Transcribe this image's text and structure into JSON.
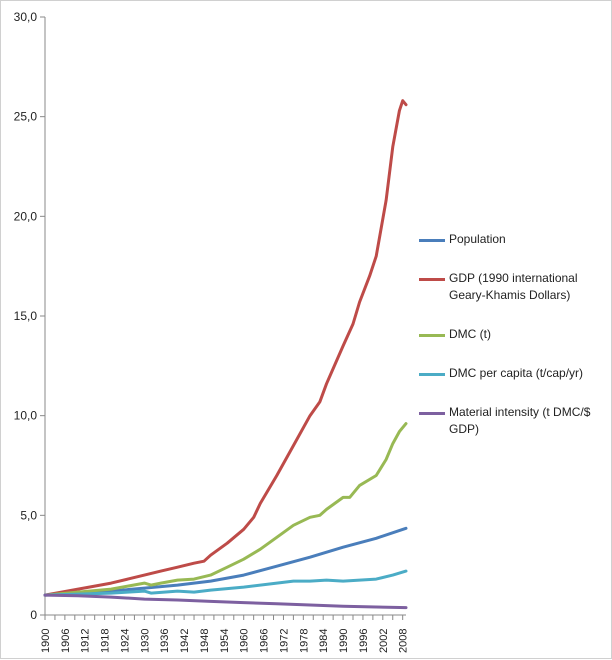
{
  "chart_data": {
    "type": "line",
    "title": "",
    "xlabel": "",
    "ylabel": "",
    "ylim": [
      0,
      30
    ],
    "xlim": [
      1900,
      2009
    ],
    "y_ticks": [
      "0",
      "5,0",
      "10,0",
      "15,0",
      "20,0",
      "25,0",
      "30,0"
    ],
    "y_tick_values": [
      0,
      5,
      10,
      15,
      20,
      25,
      30
    ],
    "x_ticks": [
      1900,
      1906,
      1912,
      1918,
      1924,
      1930,
      1936,
      1942,
      1948,
      1954,
      1960,
      1966,
      1972,
      1978,
      1984,
      1990,
      1996,
      2002,
      2008
    ],
    "grid": false,
    "legend_position": "right",
    "series": [
      {
        "name": "Population",
        "color": "#4a7ebb",
        "x": [
          1900,
          1910,
          1920,
          1930,
          1940,
          1950,
          1960,
          1970,
          1980,
          1990,
          2000,
          2009
        ],
        "y": [
          1.0,
          1.1,
          1.2,
          1.35,
          1.5,
          1.7,
          2.0,
          2.45,
          2.9,
          3.4,
          3.85,
          4.35
        ]
      },
      {
        "name": "GDP (1990 international Geary-Khamis Dollars)",
        "color": "#be4b48",
        "x": [
          1900,
          1905,
          1910,
          1915,
          1920,
          1925,
          1930,
          1935,
          1940,
          1945,
          1948,
          1950,
          1955,
          1960,
          1963,
          1965,
          1970,
          1975,
          1980,
          1983,
          1985,
          1990,
          1993,
          1995,
          1998,
          2000,
          2003,
          2005,
          2007,
          2008,
          2009
        ],
        "y": [
          1.0,
          1.15,
          1.3,
          1.45,
          1.6,
          1.8,
          2.0,
          2.2,
          2.4,
          2.6,
          2.7,
          3.0,
          3.6,
          4.3,
          4.9,
          5.6,
          7.0,
          8.5,
          10.0,
          10.7,
          11.6,
          13.5,
          14.6,
          15.7,
          17.0,
          18.0,
          20.8,
          23.5,
          25.3,
          25.8,
          25.6
        ]
      },
      {
        "name": "DMC (t)",
        "color": "#98b954",
        "x": [
          1900,
          1910,
          1920,
          1925,
          1930,
          1932,
          1935,
          1940,
          1945,
          1950,
          1955,
          1960,
          1965,
          1970,
          1975,
          1980,
          1983,
          1985,
          1990,
          1992,
          1995,
          2000,
          2003,
          2005,
          2007,
          2009
        ],
        "y": [
          1.0,
          1.15,
          1.3,
          1.45,
          1.6,
          1.5,
          1.6,
          1.75,
          1.8,
          2.0,
          2.4,
          2.8,
          3.3,
          3.9,
          4.5,
          4.9,
          5.0,
          5.3,
          5.9,
          5.9,
          6.5,
          7.0,
          7.8,
          8.6,
          9.2,
          9.6
        ]
      },
      {
        "name": "DMC per capita (t/cap/yr)",
        "color": "#4bacc6",
        "x": [
          1900,
          1910,
          1920,
          1925,
          1930,
          1932,
          1940,
          1945,
          1950,
          1960,
          1970,
          1975,
          1980,
          1985,
          1990,
          1995,
          2000,
          2005,
          2009
        ],
        "y": [
          1.0,
          1.05,
          1.1,
          1.15,
          1.2,
          1.1,
          1.2,
          1.15,
          1.25,
          1.4,
          1.6,
          1.7,
          1.7,
          1.75,
          1.7,
          1.75,
          1.8,
          2.0,
          2.2
        ]
      },
      {
        "name": "Material intensity (t DMC/$ GDP)",
        "color": "#7d60a0",
        "x": [
          1900,
          1910,
          1920,
          1930,
          1940,
          1950,
          1960,
          1970,
          1980,
          1990,
          2000,
          2009
        ],
        "y": [
          1.0,
          0.97,
          0.9,
          0.8,
          0.75,
          0.68,
          0.62,
          0.56,
          0.5,
          0.44,
          0.4,
          0.37
        ]
      }
    ]
  },
  "legend": {
    "items": [
      {
        "label": "Population",
        "color": "#4a7ebb"
      },
      {
        "label": "GDP (1990 international Geary-Khamis Dollars)",
        "color": "#be4b48"
      },
      {
        "label": "DMC (t)",
        "color": "#98b954"
      },
      {
        "label": "DMC per capita (t/cap/yr)",
        "color": "#4bacc6"
      },
      {
        "label": "Material intensity (t DMC/$ GDP)",
        "color": "#7d60a0"
      }
    ]
  }
}
